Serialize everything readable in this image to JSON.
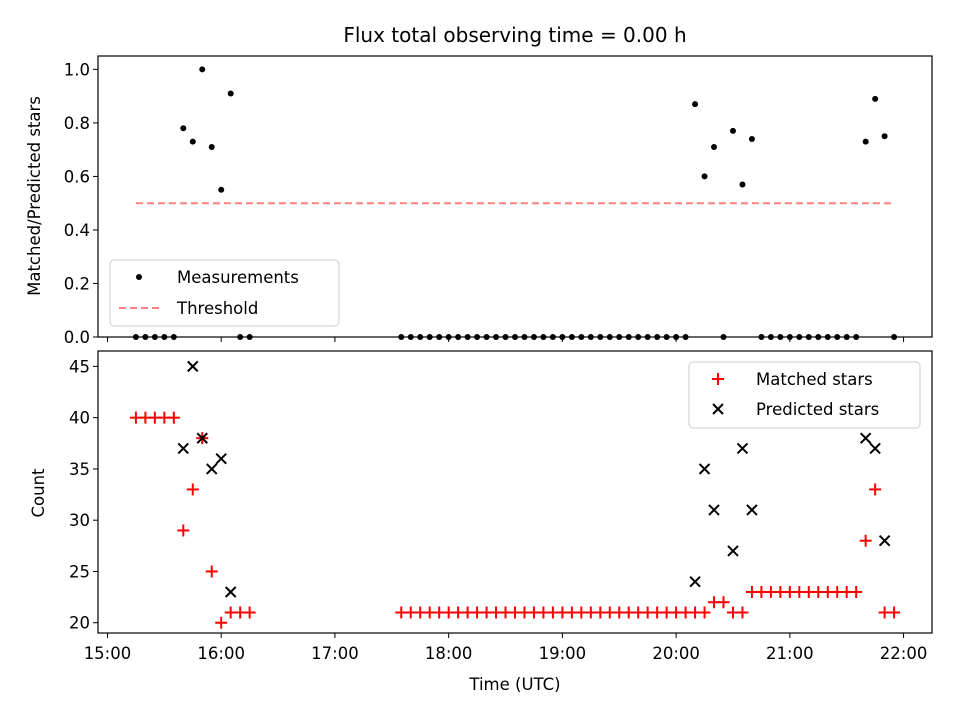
{
  "chart_data": [
    {
      "type": "scatter",
      "title": "Flux total observing time = 0.00 h",
      "ylabel": "Matched/Predicted stars",
      "xlabel": "",
      "ylim": [
        0,
        1.05
      ],
      "yticks": [
        "0.0",
        "0.2",
        "0.4",
        "0.6",
        "0.8",
        "1.0"
      ],
      "ytick_values": [
        0,
        0.2,
        0.4,
        0.6,
        0.8,
        1.0
      ],
      "grid": false,
      "legend_position": "lower-left",
      "series": [
        {
          "name": "Measurements",
          "marker": "dot",
          "color": "#000000",
          "points": [
            [
              "15:15",
              0
            ],
            [
              "15:20",
              0
            ],
            [
              "15:25",
              0
            ],
            [
              "15:30",
              0
            ],
            [
              "15:35",
              0
            ],
            [
              "15:40",
              0.78
            ],
            [
              "15:45",
              0.73
            ],
            [
              "15:50",
              1.0
            ],
            [
              "15:55",
              0.71
            ],
            [
              "16:00",
              0.55
            ],
            [
              "16:05",
              0.91
            ],
            [
              "16:10",
              0
            ],
            [
              "16:15",
              0
            ],
            [
              "17:35",
              0
            ],
            [
              "17:40",
              0
            ],
            [
              "17:45",
              0
            ],
            [
              "17:50",
              0
            ],
            [
              "17:55",
              0
            ],
            [
              "18:00",
              0
            ],
            [
              "18:05",
              0
            ],
            [
              "18:10",
              0
            ],
            [
              "18:15",
              0
            ],
            [
              "18:20",
              0
            ],
            [
              "18:25",
              0
            ],
            [
              "18:30",
              0
            ],
            [
              "18:35",
              0
            ],
            [
              "18:40",
              0
            ],
            [
              "18:45",
              0
            ],
            [
              "18:50",
              0
            ],
            [
              "18:55",
              0
            ],
            [
              "19:00",
              0
            ],
            [
              "19:05",
              0
            ],
            [
              "19:10",
              0
            ],
            [
              "19:15",
              0
            ],
            [
              "19:20",
              0
            ],
            [
              "19:25",
              0
            ],
            [
              "19:30",
              0
            ],
            [
              "19:35",
              0
            ],
            [
              "19:40",
              0
            ],
            [
              "19:45",
              0
            ],
            [
              "19:50",
              0
            ],
            [
              "19:55",
              0
            ],
            [
              "20:00",
              0
            ],
            [
              "20:05",
              0
            ],
            [
              "20:10",
              0.87
            ],
            [
              "20:15",
              0.6
            ],
            [
              "20:20",
              0.71
            ],
            [
              "20:25",
              0
            ],
            [
              "20:30",
              0.77
            ],
            [
              "20:35",
              0.57
            ],
            [
              "20:40",
              0.74
            ],
            [
              "20:45",
              0
            ],
            [
              "20:50",
              0
            ],
            [
              "20:55",
              0
            ],
            [
              "21:00",
              0
            ],
            [
              "21:05",
              0
            ],
            [
              "21:10",
              0
            ],
            [
              "21:15",
              0
            ],
            [
              "21:20",
              0
            ],
            [
              "21:25",
              0
            ],
            [
              "21:30",
              0
            ],
            [
              "21:35",
              0
            ],
            [
              "21:40",
              0.73
            ],
            [
              "21:45",
              0.89
            ],
            [
              "21:50",
              0.75
            ],
            [
              "21:55",
              0
            ]
          ]
        },
        {
          "name": "Threshold",
          "marker": "dashed-line",
          "color": "#ff7f7f",
          "x": [
            "15:15",
            "21:55"
          ],
          "y": [
            0.5,
            0.5
          ]
        }
      ]
    },
    {
      "type": "scatter",
      "title": "",
      "ylabel": "Count",
      "xlabel": "Time (UTC)",
      "ylim": [
        19,
        46.5
      ],
      "yticks": [
        "20",
        "25",
        "30",
        "35",
        "40",
        "45"
      ],
      "ytick_values": [
        20,
        25,
        30,
        35,
        40,
        45
      ],
      "xlim": [
        "14:55",
        "22:15"
      ],
      "xticks": [
        "15:00",
        "16:00",
        "17:00",
        "18:00",
        "19:00",
        "20:00",
        "21:00",
        "22:00"
      ],
      "grid": false,
      "legend_position": "upper-right",
      "series": [
        {
          "name": "Matched stars",
          "marker": "plus",
          "color": "#ff0000",
          "points": [
            [
              "15:15",
              40
            ],
            [
              "15:20",
              40
            ],
            [
              "15:25",
              40
            ],
            [
              "15:30",
              40
            ],
            [
              "15:35",
              40
            ],
            [
              "15:40",
              29
            ],
            [
              "15:45",
              33
            ],
            [
              "15:50",
              38
            ],
            [
              "15:55",
              25
            ],
            [
              "16:00",
              20
            ],
            [
              "16:05",
              21
            ],
            [
              "16:10",
              21
            ],
            [
              "16:15",
              21
            ],
            [
              "17:35",
              21
            ],
            [
              "17:40",
              21
            ],
            [
              "17:45",
              21
            ],
            [
              "17:50",
              21
            ],
            [
              "17:55",
              21
            ],
            [
              "18:00",
              21
            ],
            [
              "18:05",
              21
            ],
            [
              "18:10",
              21
            ],
            [
              "18:15",
              21
            ],
            [
              "18:20",
              21
            ],
            [
              "18:25",
              21
            ],
            [
              "18:30",
              21
            ],
            [
              "18:35",
              21
            ],
            [
              "18:40",
              21
            ],
            [
              "18:45",
              21
            ],
            [
              "18:50",
              21
            ],
            [
              "18:55",
              21
            ],
            [
              "19:00",
              21
            ],
            [
              "19:05",
              21
            ],
            [
              "19:10",
              21
            ],
            [
              "19:15",
              21
            ],
            [
              "19:20",
              21
            ],
            [
              "19:25",
              21
            ],
            [
              "19:30",
              21
            ],
            [
              "19:35",
              21
            ],
            [
              "19:40",
              21
            ],
            [
              "19:45",
              21
            ],
            [
              "19:50",
              21
            ],
            [
              "19:55",
              21
            ],
            [
              "20:00",
              21
            ],
            [
              "20:05",
              21
            ],
            [
              "20:10",
              21
            ],
            [
              "20:15",
              21
            ],
            [
              "20:20",
              22
            ],
            [
              "20:25",
              22
            ],
            [
              "20:30",
              21
            ],
            [
              "20:35",
              21
            ],
            [
              "20:40",
              23
            ],
            [
              "20:45",
              23
            ],
            [
              "20:50",
              23
            ],
            [
              "20:55",
              23
            ],
            [
              "21:00",
              23
            ],
            [
              "21:05",
              23
            ],
            [
              "21:10",
              23
            ],
            [
              "21:15",
              23
            ],
            [
              "21:20",
              23
            ],
            [
              "21:25",
              23
            ],
            [
              "21:30",
              23
            ],
            [
              "21:35",
              23
            ],
            [
              "21:40",
              28
            ],
            [
              "21:45",
              33
            ],
            [
              "21:50",
              21
            ],
            [
              "21:55",
              21
            ]
          ]
        },
        {
          "name": "Predicted stars",
          "marker": "x",
          "color": "#000000",
          "points": [
            [
              "15:40",
              37
            ],
            [
              "15:45",
              45
            ],
            [
              "15:50",
              38
            ],
            [
              "15:55",
              35
            ],
            [
              "16:00",
              36
            ],
            [
              "16:05",
              23
            ],
            [
              "20:10",
              24
            ],
            [
              "20:15",
              35
            ],
            [
              "20:20",
              31
            ],
            [
              "20:30",
              27
            ],
            [
              "20:35",
              37
            ],
            [
              "20:40",
              31
            ],
            [
              "21:40",
              38
            ],
            [
              "21:45",
              37
            ],
            [
              "21:50",
              28
            ]
          ]
        }
      ]
    }
  ]
}
